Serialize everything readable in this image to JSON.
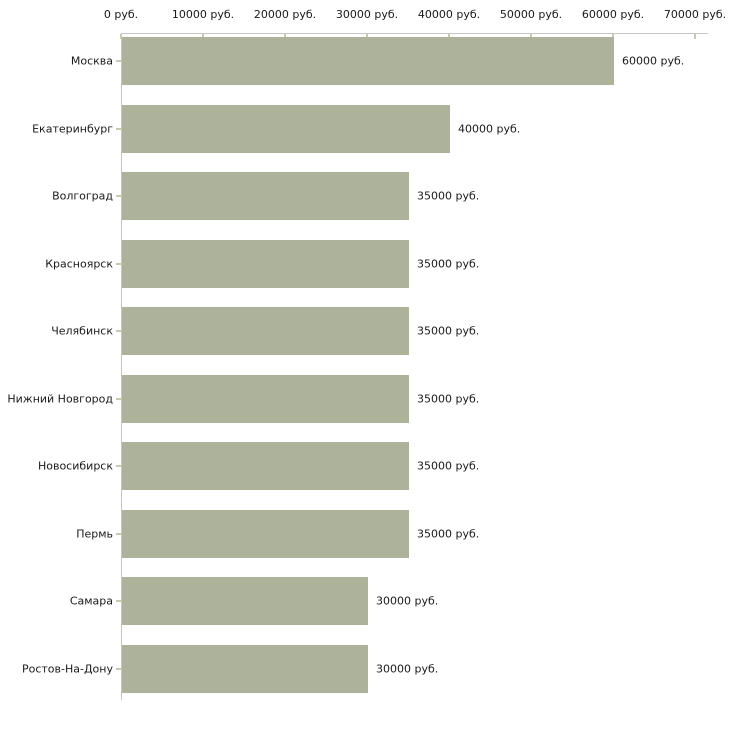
{
  "chart_data": {
    "type": "bar",
    "orientation": "horizontal",
    "title": "",
    "xlabel": "",
    "ylabel": "",
    "unit": "руб.",
    "xlim": [
      0,
      70000
    ],
    "grid": false,
    "legend": null,
    "categories": [
      "Москва",
      "Екатеринбург",
      "Волгоград",
      "Красноярск",
      "Челябинск",
      "Нижний Новгород",
      "Новосибирск",
      "Пермь",
      "Самара",
      "Ростов-На-Дону"
    ],
    "values": [
      60000,
      40000,
      35000,
      35000,
      35000,
      35000,
      35000,
      35000,
      30000,
      30000
    ],
    "value_labels": [
      "60000 руб.",
      "40000 руб.",
      "35000 руб.",
      "35000 руб.",
      "35000 руб.",
      "35000 руб.",
      "35000 руб.",
      "35000 руб.",
      "30000 руб.",
      "30000 руб."
    ],
    "x_ticks": [
      "0 руб.",
      "10000 руб.",
      "20000 руб.",
      "30000 руб.",
      "40000 руб.",
      "50000 руб.",
      "60000 руб.",
      "70000 руб."
    ],
    "colors": {
      "bar": "#adb29a",
      "axis_line": "#c5c5c5",
      "tick": "#c9c9ad",
      "text": "#1a1a1a",
      "background": "#ffffff"
    }
  }
}
